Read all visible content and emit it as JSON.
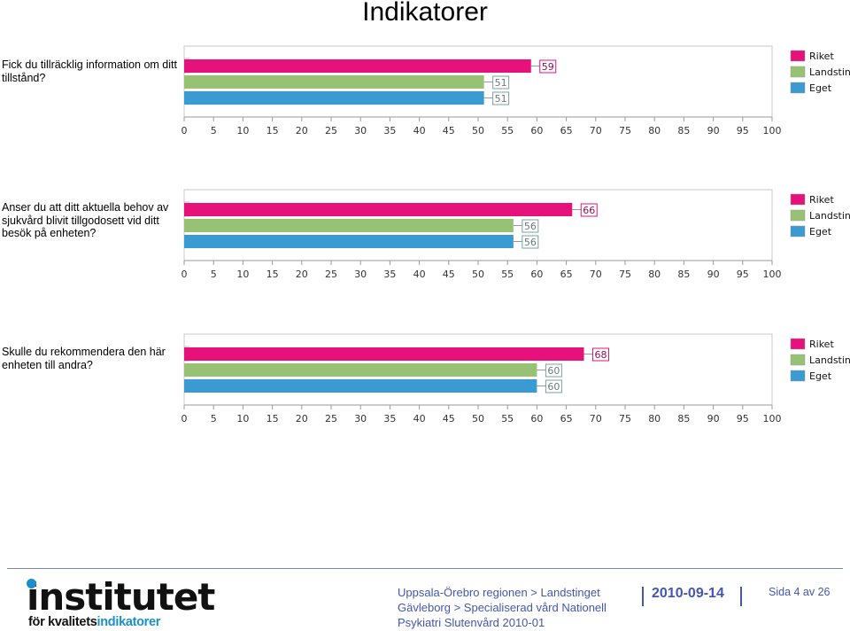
{
  "title": "Indikatorer",
  "legend": [
    "Riket",
    "Landsting",
    "Eget"
  ],
  "colors": {
    "Riket": "#e6117a",
    "Landsting": "#97c274",
    "Eget": "#3a9bd2"
  },
  "questions": [
    {
      "text": "Fick du tillräcklig information om ditt tillstånd?"
    },
    {
      "text": "Anser du att ditt aktuella behov av sjukvård blivit tillgodosett vid ditt besök på enheten?"
    },
    {
      "text": "Skulle du rekommendera den här enheten till andra?"
    }
  ],
  "chart_data": [
    {
      "type": "bar",
      "orientation": "horizontal",
      "categories": [
        "Riket",
        "Landsting",
        "Eget"
      ],
      "values": [
        59,
        51,
        51
      ],
      "xlim": [
        0,
        100
      ],
      "xticks": [
        0,
        5,
        10,
        15,
        20,
        25,
        30,
        35,
        40,
        45,
        50,
        55,
        60,
        65,
        70,
        75,
        80,
        85,
        90,
        95,
        100
      ],
      "legend_position": "right"
    },
    {
      "type": "bar",
      "orientation": "horizontal",
      "categories": [
        "Riket",
        "Landsting",
        "Eget"
      ],
      "values": [
        66,
        56,
        56
      ],
      "xlim": [
        0,
        100
      ],
      "xticks": [
        0,
        5,
        10,
        15,
        20,
        25,
        30,
        35,
        40,
        45,
        50,
        55,
        60,
        65,
        70,
        75,
        80,
        85,
        90,
        95,
        100
      ],
      "legend_position": "right"
    },
    {
      "type": "bar",
      "orientation": "horizontal",
      "categories": [
        "Riket",
        "Landsting",
        "Eget"
      ],
      "values": [
        68,
        60,
        60
      ],
      "xlim": [
        0,
        100
      ],
      "xticks": [
        0,
        5,
        10,
        15,
        20,
        25,
        30,
        35,
        40,
        45,
        50,
        55,
        60,
        65,
        70,
        75,
        80,
        85,
        90,
        95,
        100
      ],
      "legend_position": "right"
    }
  ],
  "footer": {
    "logo_main": "institutet",
    "logo_sub_a": "för kvalitets",
    "logo_sub_b": "indikatorer",
    "org_line1": "Uppsala-Örebro regionen > Landstinget",
    "org_line2": "Gävleborg > Specialiserad vård Nationell",
    "org_line3": "Psykiatri Slutenvård 2010-01",
    "date": "2010-09-14",
    "page": "Sida 4 av 26"
  }
}
